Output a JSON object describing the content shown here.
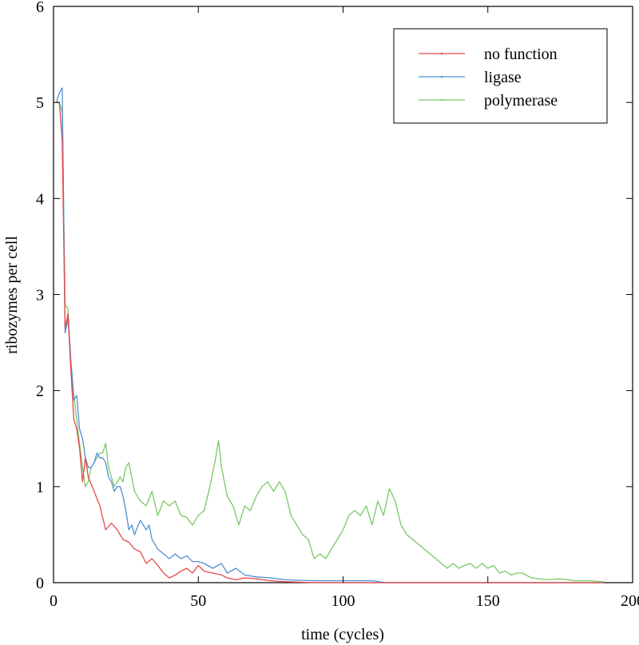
{
  "chart_data": {
    "type": "line",
    "xlabel": "time (cycles)",
    "ylabel": "ribozymes per cell",
    "xlim": [
      0,
      200
    ],
    "ylim": [
      0,
      6
    ],
    "xticks": [
      0,
      50,
      100,
      150,
      200
    ],
    "yticks": [
      0,
      1,
      2,
      3,
      4,
      5,
      6
    ],
    "grid": false,
    "legend_position": "top-right",
    "series": [
      {
        "name": "no function",
        "color": "#e8474a",
        "x": [
          1,
          2,
          3,
          4,
          5,
          6,
          7,
          8,
          9,
          10,
          11,
          12,
          14,
          16,
          18,
          20,
          22,
          24,
          26,
          28,
          30,
          32,
          34,
          36,
          38,
          40,
          42,
          44,
          46,
          48,
          50,
          52,
          55,
          58,
          60,
          63,
          66,
          70,
          75,
          80,
          90,
          100,
          120,
          150,
          190
        ],
        "y": [
          5.0,
          5.0,
          4.6,
          2.65,
          2.8,
          2.2,
          1.7,
          1.6,
          1.4,
          1.05,
          1.3,
          1.1,
          0.95,
          0.8,
          0.55,
          0.62,
          0.55,
          0.45,
          0.42,
          0.35,
          0.32,
          0.2,
          0.25,
          0.18,
          0.1,
          0.05,
          0.08,
          0.12,
          0.15,
          0.1,
          0.18,
          0.12,
          0.1,
          0.08,
          0.05,
          0.03,
          0.05,
          0.04,
          0.02,
          0.01,
          0.0,
          0.0,
          0.0,
          0.0,
          0.0
        ]
      },
      {
        "name": "ligase",
        "color": "#4f8fd4",
        "x": [
          1,
          2,
          3,
          4,
          5,
          6,
          7,
          8,
          9,
          10,
          11,
          12,
          13,
          14,
          15,
          16,
          17,
          18,
          19,
          20,
          21,
          22,
          23,
          24,
          25,
          26,
          27,
          28,
          29,
          30,
          31,
          32,
          33,
          34,
          35,
          36,
          38,
          40,
          42,
          44,
          46,
          48,
          50,
          52,
          55,
          58,
          60,
          63,
          66,
          70,
          75,
          80,
          90,
          100,
          110,
          115,
          120,
          150,
          190
        ],
        "y": [
          5.0,
          5.1,
          5.15,
          2.6,
          2.75,
          2.3,
          1.9,
          1.95,
          1.6,
          1.5,
          1.3,
          1.2,
          1.2,
          1.25,
          1.35,
          1.3,
          1.3,
          1.25,
          1.1,
          1.05,
          0.95,
          1.0,
          1.0,
          0.9,
          0.75,
          0.55,
          0.6,
          0.5,
          0.58,
          0.65,
          0.6,
          0.55,
          0.6,
          0.45,
          0.4,
          0.35,
          0.3,
          0.25,
          0.3,
          0.25,
          0.28,
          0.22,
          0.22,
          0.2,
          0.15,
          0.2,
          0.1,
          0.15,
          0.08,
          0.06,
          0.05,
          0.03,
          0.02,
          0.02,
          0.02,
          0.0,
          0.0,
          0.0,
          0.0
        ]
      },
      {
        "name": "polymerase",
        "color": "#7ac865",
        "x": [
          1,
          2,
          3,
          4,
          5,
          6,
          7,
          8,
          9,
          10,
          11,
          12,
          13,
          14,
          15,
          16,
          17,
          18,
          19,
          20,
          21,
          22,
          23,
          24,
          25,
          26,
          28,
          30,
          32,
          34,
          36,
          38,
          40,
          42,
          44,
          46,
          48,
          50,
          52,
          54,
          56,
          57,
          58,
          60,
          62,
          64,
          66,
          68,
          70,
          72,
          74,
          76,
          78,
          80,
          82,
          84,
          86,
          88,
          90,
          92,
          94,
          96,
          98,
          100,
          102,
          104,
          106,
          108,
          110,
          112,
          114,
          116,
          118,
          120,
          122,
          124,
          126,
          128,
          130,
          132,
          134,
          136,
          138,
          140,
          142,
          144,
          146,
          148,
          150,
          152,
          154,
          156,
          158,
          160,
          162,
          165,
          170,
          175,
          180,
          185,
          190
        ],
        "y": [
          5.0,
          5.0,
          4.9,
          2.9,
          2.85,
          2.3,
          1.95,
          1.7,
          1.45,
          1.2,
          1.0,
          1.05,
          1.2,
          1.25,
          1.3,
          1.35,
          1.35,
          1.45,
          1.2,
          1.1,
          1.0,
          1.05,
          1.1,
          1.05,
          1.2,
          1.25,
          0.95,
          0.85,
          0.8,
          0.95,
          0.7,
          0.85,
          0.8,
          0.85,
          0.7,
          0.68,
          0.6,
          0.7,
          0.75,
          1.0,
          1.3,
          1.48,
          1.2,
          0.9,
          0.8,
          0.6,
          0.8,
          0.75,
          0.9,
          1.0,
          1.05,
          0.95,
          1.05,
          0.95,
          0.7,
          0.6,
          0.5,
          0.45,
          0.25,
          0.3,
          0.25,
          0.35,
          0.45,
          0.55,
          0.7,
          0.75,
          0.7,
          0.8,
          0.6,
          0.85,
          0.7,
          0.98,
          0.85,
          0.6,
          0.5,
          0.45,
          0.4,
          0.35,
          0.3,
          0.25,
          0.2,
          0.15,
          0.2,
          0.15,
          0.18,
          0.2,
          0.15,
          0.2,
          0.15,
          0.18,
          0.1,
          0.12,
          0.08,
          0.1,
          0.1,
          0.05,
          0.03,
          0.04,
          0.02,
          0.02,
          0.01
        ]
      }
    ]
  }
}
